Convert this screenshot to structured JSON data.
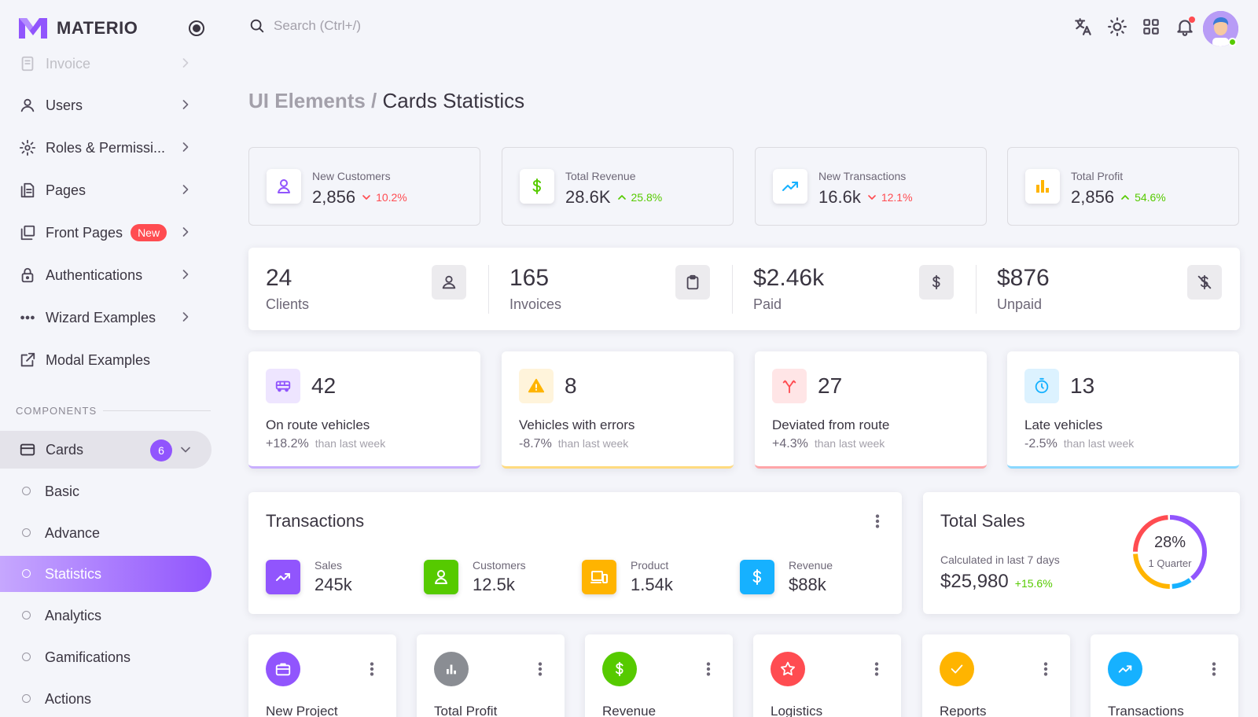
{
  "app": {
    "name": "MATERIO"
  },
  "search": {
    "placeholder": "Search (Ctrl+/)"
  },
  "breadcrumb": {
    "parent": "UI Elements",
    "separator": " / ",
    "current": "Cards Statistics"
  },
  "sidebar": {
    "items": [
      {
        "label": "Invoice",
        "icon": "file-icon"
      },
      {
        "label": "Users",
        "icon": "user-icon"
      },
      {
        "label": "Roles & Permissi...",
        "icon": "gear-icon"
      },
      {
        "label": "Pages",
        "icon": "pages-icon"
      },
      {
        "label": "Front Pages",
        "icon": "front-pages-icon",
        "badge": "New"
      },
      {
        "label": "Authentications",
        "icon": "lock-icon"
      },
      {
        "label": "Wizard Examples",
        "icon": "dots-icon"
      },
      {
        "label": "Modal Examples",
        "icon": "external-icon"
      }
    ],
    "section_title": "COMPONENTS",
    "group": {
      "label": "Cards",
      "count": "6"
    },
    "sub_items": [
      "Basic",
      "Advance",
      "Statistics",
      "Analytics",
      "Gamifications",
      "Actions"
    ],
    "active_sub_item": "Statistics"
  },
  "kpis": [
    {
      "label": "New Customers",
      "value": "2,856",
      "change": "10.2%",
      "trend": "down",
      "color": "#9155fd"
    },
    {
      "label": "Total Revenue",
      "value": "28.6K",
      "change": "25.8%",
      "trend": "up",
      "color": "#56ca00"
    },
    {
      "label": "New Transactions",
      "value": "16.6k",
      "change": "12.1%",
      "trend": "down",
      "color": "#16b1ff"
    },
    {
      "label": "Total Profit",
      "value": "2,856",
      "change": "54.6%",
      "trend": "up",
      "color": "#ffb400"
    }
  ],
  "summary": [
    {
      "value": "24",
      "label": "Clients"
    },
    {
      "value": "165",
      "label": "Invoices"
    },
    {
      "value": "$2.46k",
      "label": "Paid"
    },
    {
      "value": "$876",
      "label": "Unpaid"
    }
  ],
  "vehicles": [
    {
      "value": "42",
      "label": "On route vehicles",
      "change": "+18.2%",
      "suffix": "than last week",
      "color": "#9155fd"
    },
    {
      "value": "8",
      "label": "Vehicles with errors",
      "change": "-8.7%",
      "suffix": "than last week",
      "color": "#ffb400"
    },
    {
      "value": "27",
      "label": "Deviated from route",
      "change": "+4.3%",
      "suffix": "than last week",
      "color": "#ff4c51"
    },
    {
      "value": "13",
      "label": "Late vehicles",
      "change": "-2.5%",
      "suffix": "than last week",
      "color": "#16b1ff"
    }
  ],
  "transactions": {
    "title": "Transactions",
    "items": [
      {
        "label": "Sales",
        "value": "245k",
        "color": "#9155fd"
      },
      {
        "label": "Customers",
        "value": "12.5k",
        "color": "#56ca00"
      },
      {
        "label": "Product",
        "value": "1.54k",
        "color": "#ffb400"
      },
      {
        "label": "Revenue",
        "value": "$88k",
        "color": "#16b1ff"
      }
    ]
  },
  "total_sales": {
    "title": "Total Sales",
    "subtitle": "Calculated in last 7 days",
    "amount": "$25,980",
    "change": "+15.6%",
    "percent_label": "28%",
    "period": "1 Quarter",
    "segments": [
      {
        "value": 40,
        "color": "#9155fd"
      },
      {
        "value": 10,
        "color": "#16b1ff"
      },
      {
        "value": 25,
        "color": "#ffb400"
      },
      {
        "value": 25,
        "color": "#ff4c51"
      }
    ]
  },
  "mini_cards": [
    {
      "title": "New Project",
      "color": "#9155fd"
    },
    {
      "title": "Total Profit",
      "color": "#8a8d93"
    },
    {
      "title": "Revenue",
      "color": "#56ca00"
    },
    {
      "title": "Logistics",
      "color": "#ff4c51"
    },
    {
      "title": "Reports",
      "color": "#ffb400"
    },
    {
      "title": "Transactions",
      "color": "#16b1ff"
    }
  ]
}
